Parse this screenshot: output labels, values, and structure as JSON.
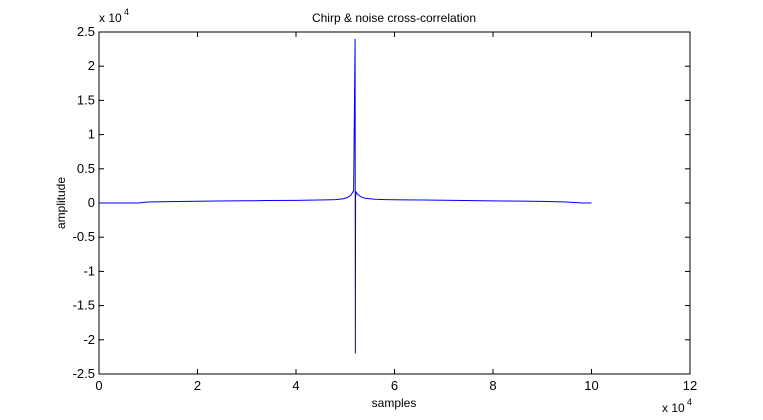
{
  "chart_data": {
    "type": "line",
    "title": "Chirp & noise cross-correlation",
    "xlabel": "samples",
    "ylabel": "amplitude",
    "x_multiplier": {
      "base": "x 10",
      "exponent": "4"
    },
    "y_multiplier": {
      "base": "x 10",
      "exponent": "4"
    },
    "xlim": [
      0,
      120000
    ],
    "ylim": [
      -25000,
      25000
    ],
    "x_ticks": [
      0,
      20000,
      40000,
      60000,
      80000,
      100000,
      120000
    ],
    "x_tick_labels": [
      "0",
      "2",
      "4",
      "6",
      "8",
      "10",
      "12"
    ],
    "y_ticks": [
      -25000,
      -20000,
      -15000,
      -10000,
      -5000,
      0,
      5000,
      10000,
      15000,
      20000,
      25000
    ],
    "y_tick_labels": [
      "-2.5",
      "-2",
      "-1.5",
      "-1",
      "-0.5",
      "0",
      "0.5",
      "1",
      "1.5",
      "2",
      "2.5"
    ],
    "grid": false,
    "line_color": "#0000ff",
    "series": [
      {
        "x": [
          0,
          1000,
          8000,
          9000,
          10000,
          14000,
          20000,
          24000,
          30000,
          34000,
          40000,
          43000,
          46000,
          48000,
          49500,
          50500,
          51200,
          51700,
          52000,
          52050,
          52100,
          52200,
          52600,
          53200,
          54000,
          56000,
          58000,
          62000,
          66000,
          70000,
          74000,
          78000,
          82000,
          86000,
          90000,
          92000,
          94000,
          95000,
          96000,
          97000,
          98000,
          100000
        ],
        "y": [
          0,
          0,
          0,
          100,
          150,
          200,
          250,
          300,
          320,
          360,
          380,
          420,
          450,
          500,
          600,
          800,
          1200,
          1800,
          24000,
          -22000,
          900,
          1600,
          1200,
          900,
          700,
          550,
          500,
          450,
          430,
          400,
          360,
          330,
          300,
          270,
          230,
          200,
          170,
          140,
          100,
          60,
          0,
          0
        ]
      }
    ]
  }
}
